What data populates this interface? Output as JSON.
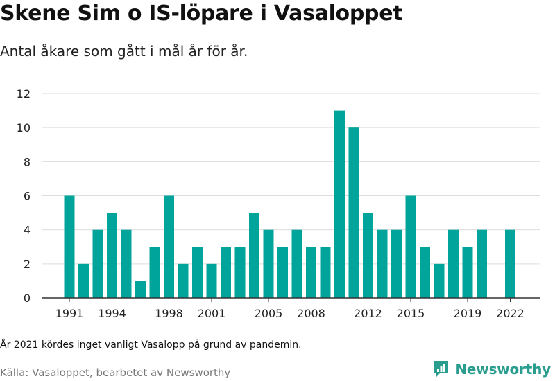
{
  "header": {
    "title": "Skene Sim o IS-löpare i Vasaloppet",
    "subtitle": "Antal åkare som gått i mål år för år."
  },
  "footer": {
    "note": "År 2021 kördes inget vanligt Vasalopp på grund av pandemin.",
    "source": "Källa: Vasaloppet, bearbetet av Newsworthy",
    "brand": "Newsworthy"
  },
  "colors": {
    "bar": "#00a49a",
    "grid": "#dddddd",
    "axis": "#333333",
    "brand": "#2a9d8f"
  },
  "icons": {
    "brand": "newsworthy-logo-icon"
  },
  "chart_data": {
    "type": "bar",
    "title": "Skene Sim o IS-löpare i Vasaloppet",
    "subtitle": "Antal åkare som gått i mål år för år.",
    "xlabel": "",
    "ylabel": "",
    "ylim": [
      0,
      12
    ],
    "yticks": [
      0,
      2,
      4,
      6,
      8,
      10,
      12
    ],
    "xticks": [
      1991,
      1994,
      1998,
      2001,
      2005,
      2008,
      2012,
      2015,
      2019,
      2022
    ],
    "grid": true,
    "legend": "none",
    "categories": [
      1991,
      1992,
      1993,
      1994,
      1995,
      1996,
      1997,
      1998,
      1999,
      2000,
      2001,
      2002,
      2003,
      2004,
      2005,
      2006,
      2007,
      2008,
      2009,
      2010,
      2011,
      2012,
      2013,
      2014,
      2015,
      2016,
      2017,
      2018,
      2019,
      2020,
      2021,
      2022
    ],
    "values": [
      6,
      2,
      4,
      5,
      4,
      1,
      3,
      6,
      2,
      3,
      2,
      3,
      3,
      5,
      4,
      3,
      4,
      3,
      3,
      11,
      10,
      5,
      4,
      4,
      6,
      3,
      2,
      4,
      3,
      4,
      null,
      4
    ]
  }
}
